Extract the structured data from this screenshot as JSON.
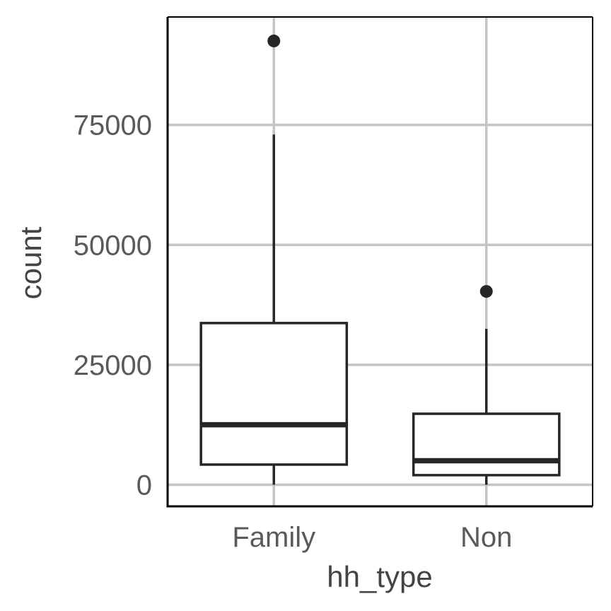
{
  "chart_data": {
    "type": "boxplot",
    "xlabel": "hh_type",
    "ylabel": "count",
    "categories": [
      "Family",
      "Non"
    ],
    "boxes": [
      {
        "category": "Family",
        "whisker_low": 0,
        "q1": 4200,
        "median": 12500,
        "q3": 33700,
        "whisker_high": 73000,
        "outliers": [
          92500
        ]
      },
      {
        "category": "Non",
        "whisker_low": 0,
        "q1": 2000,
        "median": 5000,
        "q3": 14800,
        "whisker_high": 32500,
        "outliers": [
          40300
        ]
      }
    ],
    "yticks": [
      0,
      25000,
      50000,
      75000
    ],
    "ytick_labels": [
      "0",
      "25000",
      "50000",
      "75000"
    ],
    "ylim": [
      -4500,
      97500
    ],
    "grid": true,
    "colors": {
      "box_line": "#262626",
      "grid": "#c4c4c4",
      "axis": "#000000",
      "box_fill": "#ffffff"
    }
  }
}
